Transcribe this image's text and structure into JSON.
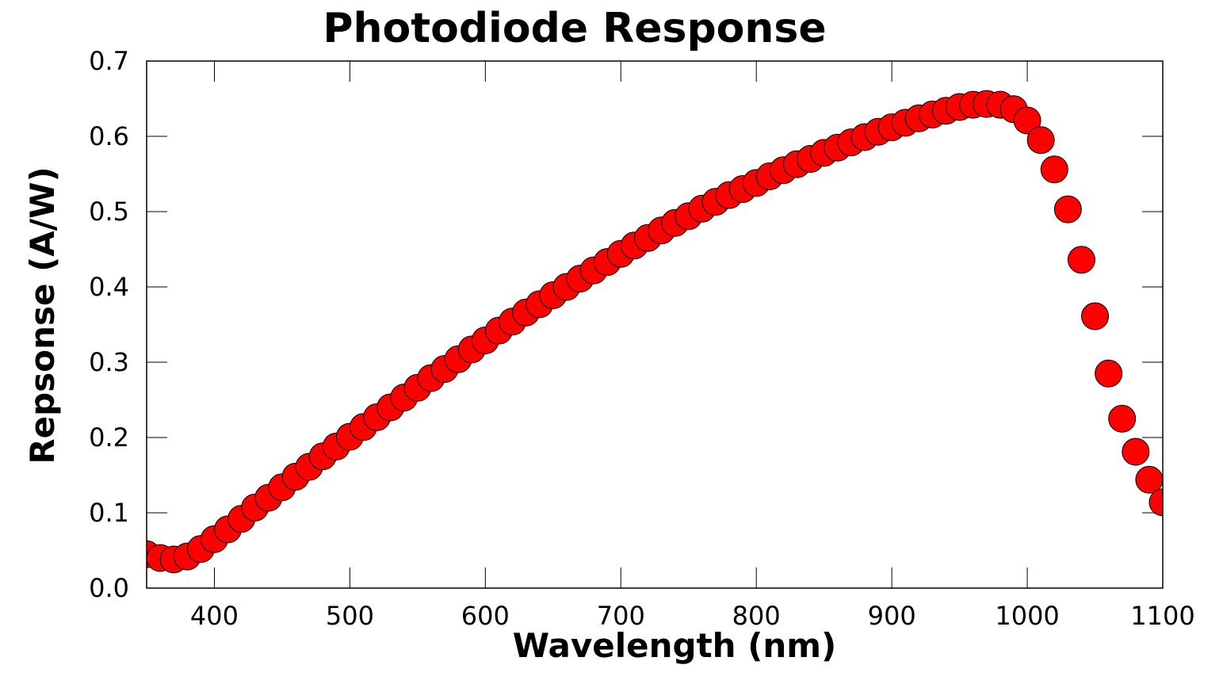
{
  "chart_data": {
    "type": "scatter",
    "title": "Photodiode Response",
    "xlabel": "Wavelength (nm)",
    "ylabel": "Repsonse (A/W)",
    "xlim": [
      350,
      1100
    ],
    "ylim": [
      0.0,
      0.7
    ],
    "xticks": [
      400,
      500,
      600,
      700,
      800,
      900,
      1000,
      1100
    ],
    "xtick_labels": [
      "400",
      "500",
      "600",
      "700",
      "800",
      "900",
      "1000",
      "1100"
    ],
    "yticks": [
      0.0,
      0.1,
      0.2,
      0.3,
      0.4,
      0.5,
      0.6,
      0.7
    ],
    "ytick_labels": [
      "0.0",
      "0.1",
      "0.2",
      "0.3",
      "0.4",
      "0.5",
      "0.6",
      "0.7"
    ],
    "grid": false,
    "marker_color": "#ff0000",
    "marker_edge_color": "#000000",
    "series": [
      {
        "name": "Photodiode Response",
        "x": [
          350,
          360,
          370,
          380,
          390,
          400,
          410,
          420,
          430,
          440,
          450,
          460,
          470,
          480,
          490,
          500,
          510,
          520,
          530,
          540,
          550,
          560,
          570,
          580,
          590,
          600,
          610,
          620,
          630,
          640,
          650,
          660,
          670,
          680,
          690,
          700,
          710,
          720,
          730,
          740,
          750,
          760,
          770,
          780,
          790,
          800,
          810,
          820,
          830,
          840,
          850,
          860,
          870,
          880,
          890,
          900,
          910,
          920,
          930,
          940,
          950,
          960,
          970,
          980,
          990,
          1000,
          1010,
          1020,
          1030,
          1040,
          1050,
          1060,
          1070,
          1080,
          1090,
          1100
        ],
        "y": [
          0.045,
          0.04,
          0.038,
          0.042,
          0.052,
          0.065,
          0.078,
          0.092,
          0.107,
          0.12,
          0.134,
          0.148,
          0.161,
          0.175,
          0.188,
          0.201,
          0.214,
          0.227,
          0.24,
          0.253,
          0.266,
          0.279,
          0.291,
          0.304,
          0.317,
          0.329,
          0.342,
          0.354,
          0.366,
          0.377,
          0.389,
          0.4,
          0.411,
          0.422,
          0.433,
          0.444,
          0.455,
          0.465,
          0.475,
          0.485,
          0.494,
          0.504,
          0.513,
          0.522,
          0.53,
          0.538,
          0.547,
          0.555,
          0.563,
          0.57,
          0.578,
          0.585,
          0.592,
          0.599,
          0.606,
          0.612,
          0.618,
          0.624,
          0.629,
          0.634,
          0.639,
          0.642,
          0.643,
          0.642,
          0.636,
          0.621,
          0.595,
          0.556,
          0.503,
          0.436,
          0.361,
          0.285,
          0.225,
          0.181,
          0.144,
          0.114
        ]
      }
    ]
  }
}
